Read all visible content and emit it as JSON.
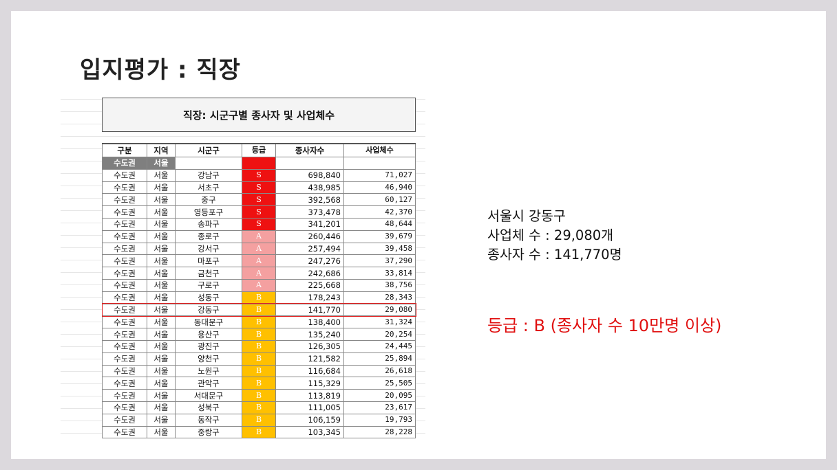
{
  "slide": {
    "title": "입지평가 : 직장",
    "sheet_title": "직장: 시군구별 종사자 및 사업체수",
    "columns": [
      "구분",
      "지역",
      "시군구",
      "등급",
      "종사자수",
      "사업체수"
    ],
    "section_row": {
      "gubun": "수도권",
      "region": "서울"
    },
    "rows": [
      {
        "gubun": "수도권",
        "region": "서울",
        "sigungu": "강남구",
        "grade": "S",
        "employees": "698,840",
        "businesses": "71,027"
      },
      {
        "gubun": "수도권",
        "region": "서울",
        "sigungu": "서초구",
        "grade": "S",
        "employees": "438,985",
        "businesses": "46,940"
      },
      {
        "gubun": "수도권",
        "region": "서울",
        "sigungu": "중구",
        "grade": "S",
        "employees": "392,568",
        "businesses": "60,127"
      },
      {
        "gubun": "수도권",
        "region": "서울",
        "sigungu": "영등포구",
        "grade": "S",
        "employees": "373,478",
        "businesses": "42,370"
      },
      {
        "gubun": "수도권",
        "region": "서울",
        "sigungu": "송파구",
        "grade": "S",
        "employees": "341,201",
        "businesses": "48,644"
      },
      {
        "gubun": "수도권",
        "region": "서울",
        "sigungu": "종로구",
        "grade": "A",
        "employees": "260,446",
        "businesses": "39,679"
      },
      {
        "gubun": "수도권",
        "region": "서울",
        "sigungu": "강서구",
        "grade": "A",
        "employees": "257,494",
        "businesses": "39,458"
      },
      {
        "gubun": "수도권",
        "region": "서울",
        "sigungu": "마포구",
        "grade": "A",
        "employees": "247,276",
        "businesses": "37,290"
      },
      {
        "gubun": "수도권",
        "region": "서울",
        "sigungu": "금천구",
        "grade": "A",
        "employees": "242,686",
        "businesses": "33,814"
      },
      {
        "gubun": "수도권",
        "region": "서울",
        "sigungu": "구로구",
        "grade": "A",
        "employees": "225,668",
        "businesses": "38,756"
      },
      {
        "gubun": "수도권",
        "region": "서울",
        "sigungu": "성동구",
        "grade": "B",
        "employees": "178,243",
        "businesses": "28,343"
      },
      {
        "gubun": "수도권",
        "region": "서울",
        "sigungu": "강동구",
        "grade": "B",
        "employees": "141,770",
        "businesses": "29,080"
      },
      {
        "gubun": "수도권",
        "region": "서울",
        "sigungu": "동대문구",
        "grade": "B",
        "employees": "138,400",
        "businesses": "31,324"
      },
      {
        "gubun": "수도권",
        "region": "서울",
        "sigungu": "용산구",
        "grade": "B",
        "employees": "135,240",
        "businesses": "20,254"
      },
      {
        "gubun": "수도권",
        "region": "서울",
        "sigungu": "광진구",
        "grade": "B",
        "employees": "126,305",
        "businesses": "24,445"
      },
      {
        "gubun": "수도권",
        "region": "서울",
        "sigungu": "양천구",
        "grade": "B",
        "employees": "121,582",
        "businesses": "25,894"
      },
      {
        "gubun": "수도권",
        "region": "서울",
        "sigungu": "노원구",
        "grade": "B",
        "employees": "116,684",
        "businesses": "26,618"
      },
      {
        "gubun": "수도권",
        "region": "서울",
        "sigungu": "관악구",
        "grade": "B",
        "employees": "115,329",
        "businesses": "25,505"
      },
      {
        "gubun": "수도권",
        "region": "서울",
        "sigungu": "서대문구",
        "grade": "B",
        "employees": "113,819",
        "businesses": "20,095"
      },
      {
        "gubun": "수도권",
        "region": "서울",
        "sigungu": "성북구",
        "grade": "B",
        "employees": "111,005",
        "businesses": "23,617"
      },
      {
        "gubun": "수도권",
        "region": "서울",
        "sigungu": "동작구",
        "grade": "B",
        "employees": "106,159",
        "businesses": "19,793"
      },
      {
        "gubun": "수도권",
        "region": "서울",
        "sigungu": "중랑구",
        "grade": "B",
        "employees": "103,345",
        "businesses": "28,228"
      }
    ],
    "highlighted_sigungu": "강동구",
    "info_lines": [
      "서울시 강동구",
      "사업체 수 : 29,080개",
      "종사자 수 : 141,770명"
    ],
    "grade_note": "등급 : B (종사자 수 10만명 이상)",
    "colors": {
      "grade_S": "#ee1111",
      "grade_A": "#f4a0a0",
      "grade_B": "#ffc000",
      "highlight": "#e01010"
    }
  }
}
